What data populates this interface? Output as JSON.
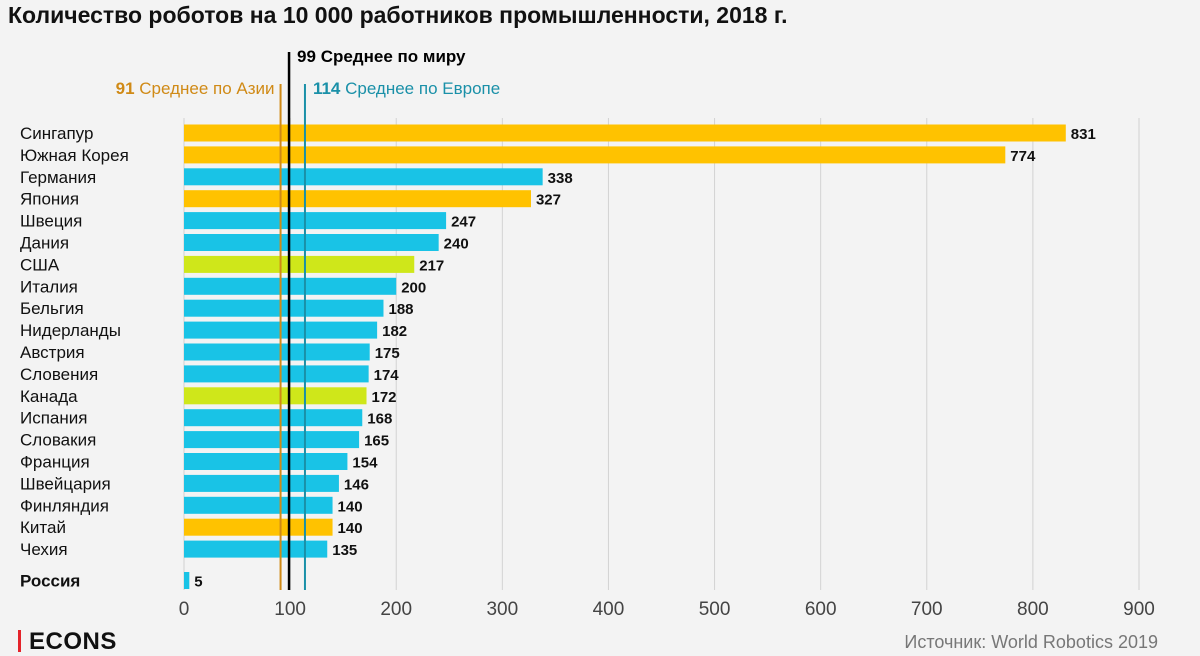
{
  "chart_data": {
    "type": "bar",
    "orientation": "horizontal",
    "title": "Количество роботов на 10 000 работников промышленности, 2018 г.",
    "categories": [
      "Сингапур",
      "Южная Корея",
      "Германия",
      "Япония",
      "Швеция",
      "Дания",
      "США",
      "Италия",
      "Бельгия",
      "Нидерланды",
      "Австрия",
      "Словения",
      "Канада",
      "Испания",
      "Словакия",
      "Франция",
      "Швейцария",
      "Финляндия",
      "Китай",
      "Чехия",
      "Россия"
    ],
    "values": [
      831,
      774,
      338,
      327,
      247,
      240,
      217,
      200,
      188,
      182,
      175,
      174,
      172,
      168,
      165,
      154,
      146,
      140,
      140,
      135,
      5
    ],
    "region": [
      "asia",
      "asia",
      "europe",
      "asia",
      "europe",
      "europe",
      "america",
      "europe",
      "europe",
      "europe",
      "europe",
      "europe",
      "america",
      "europe",
      "europe",
      "europe",
      "europe",
      "europe",
      "asia",
      "europe",
      "europe"
    ],
    "highlight": "Россия",
    "colors": {
      "asia": "#ffc200",
      "europe": "#19c3e6",
      "america": "#cfe71a"
    },
    "xlim": [
      0,
      900
    ],
    "xticks": [
      0,
      100,
      200,
      300,
      400,
      500,
      600,
      700,
      800,
      900
    ],
    "grid": true,
    "reference_lines": [
      {
        "value": 99,
        "number": "99",
        "label": "Среднее по миру",
        "color": "#000000"
      },
      {
        "value": 91,
        "number": "91",
        "label": "Среднее по Азии",
        "color": "#d08a16"
      },
      {
        "value": 114,
        "number": "114",
        "label": "Среднее по Европе",
        "color": "#1a90a8"
      }
    ]
  },
  "footer": {
    "brand": "ECONS",
    "source": "Источник: World Robotics 2019"
  }
}
